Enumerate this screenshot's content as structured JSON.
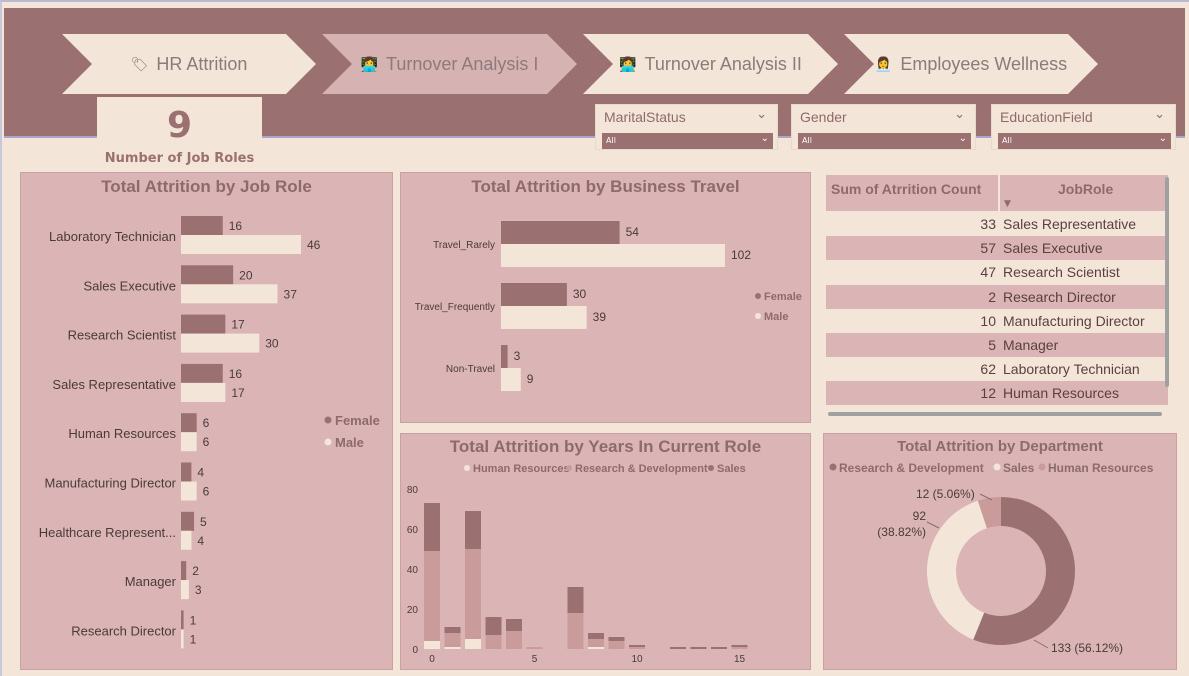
{
  "nav": {
    "tabs": [
      {
        "icon": "🏷",
        "label": "HR Attrition"
      },
      {
        "icon": "👩‍💻",
        "label": "Turnover Analysis I"
      },
      {
        "icon": "👩‍💻",
        "label": "Turnover Analysis II"
      },
      {
        "icon": "👩‍💼",
        "label": "Employees Wellness"
      }
    ]
  },
  "kpi": {
    "value": "9",
    "label": "Number of Job Roles"
  },
  "slicers": [
    {
      "title": "MaritalStatus",
      "value": "All"
    },
    {
      "title": "Gender",
      "value": "All"
    },
    {
      "title": "EducationField",
      "value": "All"
    }
  ],
  "colors": {
    "female": "#9a7070",
    "male": "#f3e6d8",
    "rd": "#9a7070",
    "sales": "#f3e6d8",
    "hr": "#c99b9b",
    "panel": "#dbb5b5"
  },
  "job_role_chart": {
    "title": "Total Attrition by Job Role",
    "legend": [
      "Female",
      "Male"
    ]
  },
  "business_travel_chart": {
    "title": "Total Attrition by Business Travel",
    "legend": [
      "Female",
      "Male"
    ]
  },
  "years_role_chart": {
    "title": "Total Attrition by Years In Current Role",
    "legend": [
      "Human Resources",
      "Research & Development",
      "Sales"
    ]
  },
  "department_chart": {
    "title": "Total Attrition by Department",
    "legend": [
      "Research & Development",
      "Sales",
      "Human Resources"
    ],
    "labels": [
      "133 (56.12%)",
      "92",
      "(38.82%)",
      "12 (5.06%)"
    ]
  },
  "table": {
    "headers": [
      "Sum of Atrrition Count",
      "JobRole"
    ],
    "rows": [
      {
        "count": "33",
        "role": "Sales Representative"
      },
      {
        "count": "57",
        "role": "Sales Executive"
      },
      {
        "count": "47",
        "role": "Research Scientist"
      },
      {
        "count": "2",
        "role": "Research Director"
      },
      {
        "count": "10",
        "role": "Manufacturing Director"
      },
      {
        "count": "5",
        "role": "Manager"
      },
      {
        "count": "62",
        "role": "Laboratory Technician"
      },
      {
        "count": "12",
        "role": "Human Resources"
      }
    ]
  },
  "chart_data": [
    {
      "type": "bar",
      "title": "Total Attrition by Job Role",
      "orientation": "horizontal",
      "categories": [
        "Laboratory Technician",
        "Sales Executive",
        "Research Scientist",
        "Sales Representative",
        "Human Resources",
        "Manufacturing Director",
        "Healthcare Represent...",
        "Manager",
        "Research Director"
      ],
      "series": [
        {
          "name": "Female",
          "values": [
            16,
            20,
            17,
            16,
            6,
            4,
            5,
            2,
            1
          ]
        },
        {
          "name": "Male",
          "values": [
            46,
            37,
            30,
            17,
            6,
            6,
            4,
            3,
            1
          ]
        }
      ],
      "xlim": [
        0,
        50
      ],
      "legend": "right"
    },
    {
      "type": "bar",
      "title": "Total Attrition by Business Travel",
      "orientation": "horizontal",
      "categories": [
        "Travel_Rarely",
        "Travel_Frequently",
        "Non-Travel"
      ],
      "series": [
        {
          "name": "Female",
          "values": [
            54,
            30,
            3
          ]
        },
        {
          "name": "Male",
          "values": [
            102,
            39,
            9
          ]
        }
      ],
      "xlim": [
        0,
        110
      ],
      "legend": "right"
    },
    {
      "type": "bar",
      "stacked": true,
      "title": "Total Attrition by Years In Current Role",
      "x": [
        0,
        1,
        2,
        3,
        4,
        5,
        6,
        7,
        8,
        9,
        10,
        11,
        12,
        13,
        14,
        15
      ],
      "series": [
        {
          "name": "Human Resources",
          "values": [
            4,
            1,
            5,
            0,
            0,
            0,
            0,
            0,
            1,
            0,
            0,
            0,
            0,
            0,
            0,
            0
          ]
        },
        {
          "name": "Research & Development",
          "values": [
            45,
            7,
            45,
            7,
            9,
            1,
            0,
            18,
            4,
            4,
            1,
            0,
            0,
            0,
            0,
            1
          ]
        },
        {
          "name": "Sales",
          "values": [
            24,
            3,
            19,
            9,
            6,
            0,
            0,
            13,
            3,
            2,
            1,
            0,
            1,
            1,
            1,
            1
          ]
        }
      ],
      "yticks": [
        0,
        20,
        40,
        60,
        80
      ],
      "xticks": [
        0,
        5,
        10,
        15
      ],
      "ylim": [
        0,
        80
      ],
      "legend": "top"
    },
    {
      "type": "pie",
      "donut": true,
      "title": "Total Attrition by Department",
      "categories": [
        "Research & Development",
        "Sales",
        "Human Resources"
      ],
      "values": [
        133,
        92,
        12
      ],
      "legend": "top"
    }
  ]
}
